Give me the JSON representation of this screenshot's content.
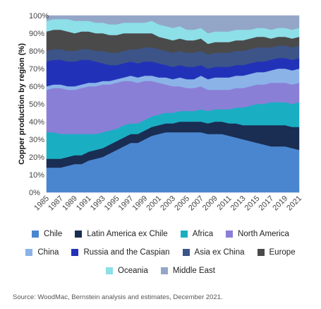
{
  "chart_data": {
    "type": "area",
    "stacked": true,
    "ylabel": "Copper production by region (%)",
    "xlabel": "",
    "ylim": [
      0,
      100
    ],
    "yticks": [
      "0%",
      "10%",
      "20%",
      "30%",
      "40%",
      "50%",
      "60%",
      "70%",
      "80%",
      "90%",
      "100%"
    ],
    "x": [
      1985,
      1986,
      1987,
      1988,
      1989,
      1990,
      1991,
      1992,
      1993,
      1994,
      1995,
      1996,
      1997,
      1998,
      1999,
      2000,
      2001,
      2002,
      2003,
      2004,
      2005,
      2006,
      2007,
      2008,
      2009,
      2010,
      2011,
      2012,
      2013,
      2014,
      2015,
      2016,
      2017,
      2018,
      2019,
      2020,
      2021
    ],
    "xticks": [
      "1985",
      "1987",
      "1989",
      "1991",
      "1993",
      "1995",
      "1997",
      "1999",
      "2001",
      "2003",
      "2005",
      "2007",
      "2009",
      "2011",
      "2013",
      "2015",
      "2017",
      "2019",
      "2021"
    ],
    "series": [
      {
        "name": "Chile",
        "color": "#4a86cf",
        "values": [
          14,
          14,
          14,
          15,
          16,
          16,
          18,
          19,
          20,
          22,
          24,
          26,
          28,
          28,
          30,
          32,
          33,
          34,
          34,
          34,
          34,
          34,
          34,
          33,
          33,
          33,
          32,
          31,
          30,
          29,
          28,
          27,
          26,
          26,
          26,
          25,
          24
        ]
      },
      {
        "name": "Latin America ex Chile",
        "color": "#1a2d52",
        "values": [
          5,
          5,
          5,
          5,
          5,
          5,
          5,
          5,
          5,
          5,
          5,
          5,
          5,
          5,
          5,
          5,
          5,
          5,
          5,
          6,
          6,
          6,
          6,
          6,
          7,
          7,
          7,
          8,
          8,
          9,
          10,
          11,
          12,
          12,
          12,
          12,
          13
        ]
      },
      {
        "name": "Africa",
        "color": "#1aaec3",
        "values": [
          15,
          15,
          14,
          13,
          12,
          12,
          10,
          9,
          9,
          8,
          7,
          7,
          6,
          6,
          6,
          6,
          6,
          6,
          6,
          6,
          6,
          6,
          7,
          7,
          7,
          7,
          8,
          9,
          10,
          11,
          12,
          12,
          13,
          13,
          13,
          13,
          14
        ]
      },
      {
        "name": "North America",
        "color": "#8a7fd6",
        "values": [
          24,
          25,
          26,
          25,
          25,
          26,
          27,
          27,
          27,
          26,
          26,
          25,
          24,
          23,
          22,
          20,
          18,
          16,
          15,
          14,
          13,
          13,
          13,
          12,
          11,
          11,
          11,
          11,
          11,
          11,
          11,
          11,
          11,
          11,
          11,
          11,
          11
        ]
      },
      {
        "name": "China",
        "color": "#8bb3e8",
        "values": [
          2,
          2,
          2,
          2,
          2,
          2,
          2,
          2,
          2,
          2,
          2,
          2,
          3,
          3,
          3,
          3,
          3,
          4,
          4,
          5,
          5,
          5,
          6,
          6,
          7,
          7,
          7,
          7,
          7,
          7,
          7,
          7,
          7,
          8,
          8,
          8,
          8
        ]
      },
      {
        "name": "Russia and the Caspian",
        "color": "#2232b8",
        "values": [
          14,
          14,
          14,
          14,
          14,
          14,
          13,
          12,
          10,
          9,
          8,
          8,
          8,
          8,
          8,
          8,
          8,
          7,
          7,
          7,
          7,
          7,
          6,
          6,
          6,
          6,
          6,
          6,
          6,
          6,
          6,
          6,
          6,
          6,
          6,
          6,
          6
        ]
      },
      {
        "name": "Asia ex China",
        "color": "#3c5488",
        "values": [
          6,
          6,
          6,
          6,
          6,
          6,
          6,
          6,
          7,
          7,
          7,
          7,
          7,
          8,
          8,
          8,
          8,
          8,
          8,
          8,
          8,
          8,
          8,
          8,
          8,
          8,
          8,
          8,
          8,
          8,
          8,
          8,
          7,
          7,
          7,
          7,
          7
        ]
      },
      {
        "name": "Europe",
        "color": "#4a4a4a",
        "values": [
          11,
          11,
          11,
          11,
          10,
          10,
          10,
          10,
          10,
          10,
          10,
          10,
          9,
          9,
          8,
          8,
          7,
          7,
          7,
          7,
          7,
          7,
          7,
          6,
          6,
          6,
          6,
          6,
          6,
          6,
          6,
          6,
          5,
          5,
          5,
          5,
          5
        ]
      },
      {
        "name": "Oceania",
        "color": "#8ddfe8",
        "values": [
          6,
          6,
          6,
          7,
          7,
          6,
          6,
          6,
          6,
          6,
          6,
          6,
          6,
          6,
          6,
          7,
          7,
          7,
          7,
          7,
          6,
          6,
          6,
          6,
          6,
          6,
          6,
          6,
          6,
          5,
          5,
          5,
          5,
          5,
          5,
          5,
          5
        ]
      },
      {
        "name": "Middle East",
        "color": "#94a6c8",
        "values": [
          3,
          2,
          2,
          2,
          3,
          3,
          3,
          4,
          4,
          5,
          5,
          4,
          4,
          4,
          4,
          3,
          5,
          6,
          7,
          6,
          8,
          8,
          7,
          10,
          9,
          9,
          9,
          8,
          8,
          8,
          7,
          7,
          8,
          7,
          7,
          9,
          7
        ]
      }
    ]
  },
  "source": "Source: WoodMac, Bernstein analysis and estimates, December 2021."
}
